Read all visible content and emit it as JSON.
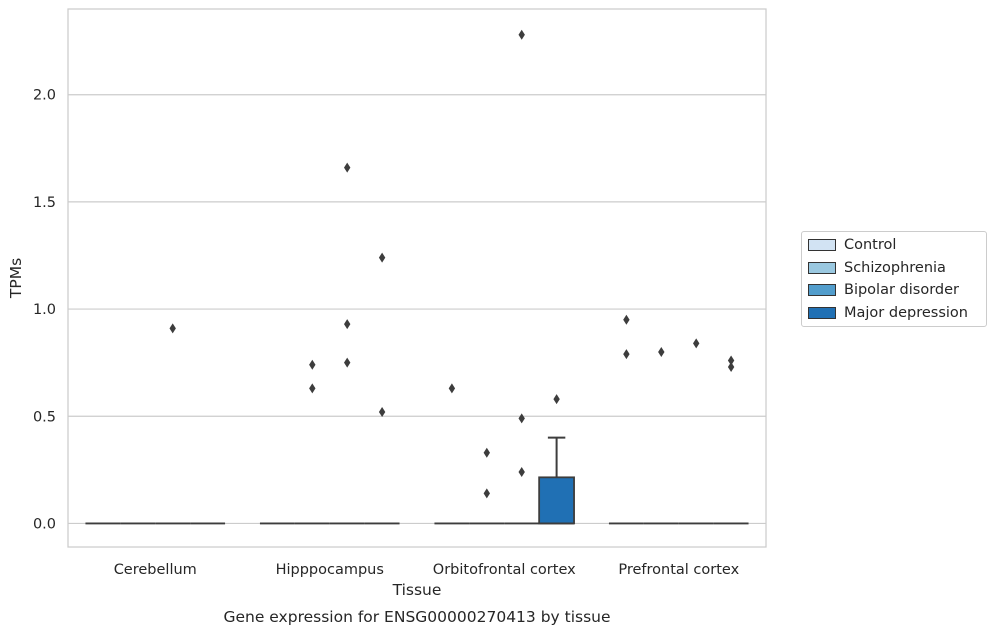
{
  "caption": "Gene expression for ENSG00000270413 by tissue",
  "colors": {
    "Control": "#d2e3f3",
    "Schizophrenia": "#9ac8e0",
    "Bipolar disorder": "#529dcc",
    "Major depression": "#2070b4",
    "grid": "#cccccc",
    "frame": "#cccccc",
    "box_edge": "#3d3d3d"
  },
  "chart_data": {
    "type": "box",
    "title": "",
    "xlabel": "Tissue",
    "ylabel": "TPMs",
    "ylim": [
      -0.11,
      2.4
    ],
    "yticks": [
      "0.0",
      "0.5",
      "1.0",
      "1.5",
      "2.0"
    ],
    "grid": true,
    "legend_position": "right, outside plot",
    "categories": [
      "Cerebellum",
      "Hipppocampus",
      "Orbitofrontal cortex",
      "Prefrontal cortex"
    ],
    "series": [
      {
        "name": "Control",
        "boxes": [
          {
            "category": "Cerebellum",
            "q1": 0,
            "median": 0,
            "q3": 0,
            "whisker_low": 0,
            "whisker_high": 0,
            "outliers": []
          },
          {
            "category": "Hipppocampus",
            "q1": 0,
            "median": 0,
            "q3": 0,
            "whisker_low": 0,
            "whisker_high": 0,
            "outliers": []
          },
          {
            "category": "Orbitofrontal cortex",
            "q1": 0,
            "median": 0,
            "q3": 0,
            "whisker_low": 0,
            "whisker_high": 0,
            "outliers": [
              0.63
            ]
          },
          {
            "category": "Prefrontal cortex",
            "q1": 0,
            "median": 0,
            "q3": 0,
            "whisker_low": 0,
            "whisker_high": 0,
            "outliers": [
              0.95,
              0.79
            ]
          }
        ]
      },
      {
        "name": "Schizophrenia",
        "boxes": [
          {
            "category": "Cerebellum",
            "q1": 0,
            "median": 0,
            "q3": 0,
            "whisker_low": 0,
            "whisker_high": 0,
            "outliers": []
          },
          {
            "category": "Hipppocampus",
            "q1": 0,
            "median": 0,
            "q3": 0,
            "whisker_low": 0,
            "whisker_high": 0,
            "outliers": [
              0.74,
              0.63
            ]
          },
          {
            "category": "Orbitofrontal cortex",
            "q1": 0,
            "median": 0,
            "q3": 0,
            "whisker_low": 0,
            "whisker_high": 0,
            "outliers": [
              0.33,
              0.14
            ]
          },
          {
            "category": "Prefrontal cortex",
            "q1": 0,
            "median": 0,
            "q3": 0,
            "whisker_low": 0,
            "whisker_high": 0,
            "outliers": [
              0.8
            ]
          }
        ]
      },
      {
        "name": "Bipolar disorder",
        "boxes": [
          {
            "category": "Cerebellum",
            "q1": 0,
            "median": 0,
            "q3": 0,
            "whisker_low": 0,
            "whisker_high": 0,
            "outliers": [
              0.91
            ]
          },
          {
            "category": "Hipppocampus",
            "q1": 0,
            "median": 0,
            "q3": 0,
            "whisker_low": 0,
            "whisker_high": 0,
            "outliers": [
              1.66,
              0.93,
              0.75
            ]
          },
          {
            "category": "Orbitofrontal cortex",
            "q1": 0,
            "median": 0,
            "q3": 0,
            "whisker_low": 0,
            "whisker_high": 0,
            "outliers": [
              2.28,
              0.49,
              0.24
            ]
          },
          {
            "category": "Prefrontal cortex",
            "q1": 0,
            "median": 0,
            "q3": 0,
            "whisker_low": 0,
            "whisker_high": 0,
            "outliers": [
              0.84
            ]
          }
        ]
      },
      {
        "name": "Major depression",
        "boxes": [
          {
            "category": "Cerebellum",
            "q1": 0,
            "median": 0,
            "q3": 0,
            "whisker_low": 0,
            "whisker_high": 0,
            "outliers": []
          },
          {
            "category": "Hipppocampus",
            "q1": 0,
            "median": 0,
            "q3": 0,
            "whisker_low": 0,
            "whisker_high": 0,
            "outliers": [
              1.24,
              0.52
            ]
          },
          {
            "category": "Orbitofrontal cortex",
            "q1": 0,
            "median": 0,
            "q3": 0.215,
            "whisker_low": 0,
            "whisker_high": 0.4,
            "outliers": [
              0.58
            ]
          },
          {
            "category": "Prefrontal cortex",
            "q1": 0,
            "median": 0,
            "q3": 0,
            "whisker_low": 0,
            "whisker_high": 0,
            "outliers": [
              0.76,
              0.73
            ]
          }
        ]
      }
    ]
  }
}
